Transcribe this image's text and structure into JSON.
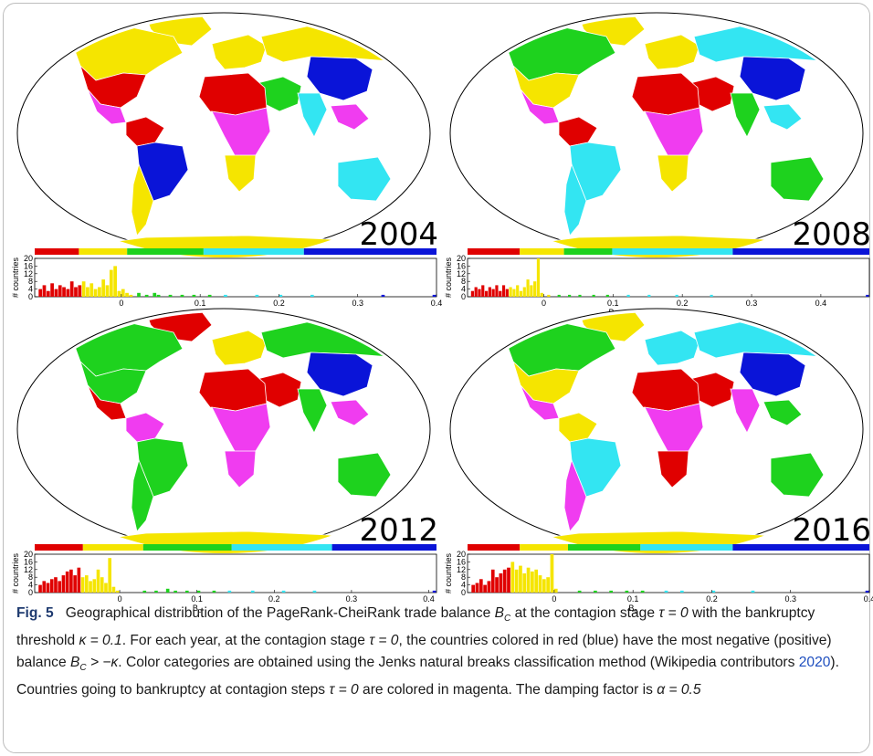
{
  "figure": {
    "label": "Fig. 5",
    "caption_text": "Geographical distribution of the PageRank-CheiRank trade balance B",
    "caption_parts": [
      "Geographical distribution of the PageRank-CheiRank trade balance ",
      "B",
      "C",
      " at the contagion stage ",
      "τ = 0",
      " with the bankruptcy threshold ",
      "κ = 0.1",
      ". For each year, at the contagion stage ",
      "τ = 0",
      ", the countries colored in red (blue) have the most negative (positive) balance ",
      "B",
      "C",
      " > −κ",
      ". Color categories are obtained using the Jenks natural breaks classification method (Wikipedia contributors ",
      "2020",
      "). Countries going to bankruptcy at contagion steps ",
      "τ = 0",
      " are colored in magenta. The damping factor is ",
      "α = 0.5"
    ]
  },
  "colors": {
    "red": "#e00000",
    "yellow": "#f5e500",
    "green": "#1ed21e",
    "cyan": "#33e5f2",
    "blue": "#0a14d8",
    "magenta": "#f03cf0",
    "gray": "#9a9a9a"
  },
  "panels": [
    {
      "year": "2004",
      "colorbar": [
        "red",
        "yellow",
        "green",
        "cyan",
        "blue"
      ],
      "colorbar_breaks": [
        0,
        0.11,
        0.23,
        0.42,
        0.67,
        1.0
      ],
      "continent_colors": {
        "north_america": "yellow",
        "usa": "red",
        "mexico": "magenta",
        "greenland": "yellow",
        "south_america_north": "red",
        "brazil": "blue",
        "south_america_south": "yellow",
        "europe": "yellow",
        "russia": "yellow",
        "china": "blue",
        "india": "cyan",
        "africa_north": "red",
        "africa_central": "magenta",
        "africa_south": "yellow",
        "middle_east": "green",
        "southeast_asia": "magenta",
        "australia": "cyan",
        "antarctica": "yellow"
      }
    },
    {
      "year": "2008",
      "colorbar": [
        "red",
        "yellow",
        "green",
        "cyan",
        "blue"
      ],
      "colorbar_breaks": [
        0,
        0.13,
        0.24,
        0.36,
        0.66,
        1.0
      ],
      "continent_colors": {
        "north_america": "green",
        "usa": "yellow",
        "mexico": "magenta",
        "greenland": "yellow",
        "south_america_north": "red",
        "brazil": "cyan",
        "south_america_south": "cyan",
        "europe": "yellow",
        "russia": "cyan",
        "china": "blue",
        "india": "green",
        "africa_north": "red",
        "africa_central": "magenta",
        "africa_south": "yellow",
        "middle_east": "red",
        "southeast_asia": "cyan",
        "australia": "green",
        "antarctica": "yellow"
      }
    },
    {
      "year": "2012",
      "colorbar": [
        "red",
        "yellow",
        "green",
        "cyan",
        "blue"
      ],
      "colorbar_breaks": [
        0,
        0.12,
        0.27,
        0.49,
        0.74,
        1.0
      ],
      "continent_colors": {
        "north_america": "green",
        "usa": "green",
        "mexico": "red",
        "greenland": "red",
        "south_america_north": "magenta",
        "brazil": "green",
        "south_america_south": "green",
        "europe": "yellow",
        "russia": "green",
        "china": "blue",
        "india": "green",
        "africa_north": "red",
        "africa_central": "magenta",
        "africa_south": "magenta",
        "middle_east": "red",
        "southeast_asia": "magenta",
        "australia": "green",
        "antarctica": "yellow"
      }
    },
    {
      "year": "2016",
      "colorbar": [
        "red",
        "yellow",
        "green",
        "cyan",
        "blue"
      ],
      "colorbar_breaks": [
        0,
        0.13,
        0.25,
        0.43,
        0.66,
        1.0
      ],
      "continent_colors": {
        "north_america": "green",
        "usa": "yellow",
        "mexico": "magenta",
        "greenland": "yellow",
        "south_america_north": "yellow",
        "brazil": "cyan",
        "south_america_south": "magenta",
        "europe": "cyan",
        "russia": "cyan",
        "china": "blue",
        "india": "magenta",
        "africa_north": "red",
        "africa_central": "magenta",
        "africa_south": "red",
        "middle_east": "red",
        "southeast_asia": "green",
        "australia": "green",
        "antarctica": "yellow"
      }
    }
  ],
  "chart_data": [
    {
      "type": "bar",
      "panel": "2004",
      "xlabel": "Bc",
      "ylabel": "# countries",
      "x_ticks": [
        "0",
        "0.1",
        "0.2",
        "0.3",
        "0.4"
      ],
      "x_tick_values": [
        0,
        0.1,
        0.2,
        0.3,
        0.4
      ],
      "y_ticks": [
        "0",
        "4",
        "8",
        "12",
        "16",
        "20"
      ],
      "y_tick_values": [
        0,
        4,
        8,
        12,
        16,
        20
      ],
      "xlim": [
        -0.11,
        0.4
      ],
      "ylim": [
        0,
        20
      ],
      "bin_width": 0.005,
      "bins": [
        {
          "x": -0.105,
          "y": 4,
          "c": "red"
        },
        {
          "x": -0.1,
          "y": 6,
          "c": "red"
        },
        {
          "x": -0.095,
          "y": 3,
          "c": "red"
        },
        {
          "x": -0.09,
          "y": 7,
          "c": "red"
        },
        {
          "x": -0.085,
          "y": 4,
          "c": "red"
        },
        {
          "x": -0.08,
          "y": 6,
          "c": "red"
        },
        {
          "x": -0.075,
          "y": 5,
          "c": "red"
        },
        {
          "x": -0.07,
          "y": 4,
          "c": "red"
        },
        {
          "x": -0.065,
          "y": 8,
          "c": "red"
        },
        {
          "x": -0.06,
          "y": 5,
          "c": "red"
        },
        {
          "x": -0.055,
          "y": 6,
          "c": "red"
        },
        {
          "x": -0.05,
          "y": 8,
          "c": "yellow"
        },
        {
          "x": -0.045,
          "y": 5,
          "c": "yellow"
        },
        {
          "x": -0.04,
          "y": 7,
          "c": "yellow"
        },
        {
          "x": -0.035,
          "y": 4,
          "c": "yellow"
        },
        {
          "x": -0.03,
          "y": 5,
          "c": "yellow"
        },
        {
          "x": -0.025,
          "y": 9,
          "c": "yellow"
        },
        {
          "x": -0.02,
          "y": 6,
          "c": "yellow"
        },
        {
          "x": -0.015,
          "y": 14,
          "c": "yellow"
        },
        {
          "x": -0.01,
          "y": 16,
          "c": "yellow"
        },
        {
          "x": -0.005,
          "y": 3,
          "c": "yellow"
        },
        {
          "x": 0.0,
          "y": 4,
          "c": "yellow"
        },
        {
          "x": 0.005,
          "y": 2,
          "c": "yellow"
        },
        {
          "x": 0.01,
          "y": 1,
          "c": "yellow"
        },
        {
          "x": 0.02,
          "y": 2,
          "c": "green"
        },
        {
          "x": 0.03,
          "y": 1,
          "c": "green"
        },
        {
          "x": 0.04,
          "y": 2,
          "c": "green"
        },
        {
          "x": 0.045,
          "y": 1,
          "c": "green"
        },
        {
          "x": 0.06,
          "y": 1,
          "c": "green"
        },
        {
          "x": 0.075,
          "y": 1,
          "c": "green"
        },
        {
          "x": 0.09,
          "y": 1,
          "c": "green"
        },
        {
          "x": 0.11,
          "y": 1,
          "c": "green"
        },
        {
          "x": 0.13,
          "y": 1,
          "c": "cyan"
        },
        {
          "x": 0.17,
          "y": 1,
          "c": "cyan"
        },
        {
          "x": 0.2,
          "y": 1,
          "c": "cyan"
        },
        {
          "x": 0.24,
          "y": 1,
          "c": "cyan"
        },
        {
          "x": 0.33,
          "y": 1,
          "c": "blue"
        },
        {
          "x": 0.395,
          "y": 1,
          "c": "blue"
        }
      ]
    },
    {
      "type": "bar",
      "panel": "2008",
      "xlabel": "Bc",
      "ylabel": "# countries",
      "x_ticks": [
        "0",
        "0.1",
        "0.2",
        "0.3",
        "0.4"
      ],
      "x_tick_values": [
        0,
        0.1,
        0.2,
        0.3,
        0.4
      ],
      "y_ticks": [
        "0",
        "4",
        "8",
        "12",
        "16",
        "20"
      ],
      "y_tick_values": [
        0,
        4,
        8,
        12,
        16,
        20
      ],
      "xlim": [
        -0.11,
        0.47
      ],
      "ylim": [
        0,
        20
      ],
      "bin_width": 0.005,
      "bins": [
        {
          "x": -0.105,
          "y": 3,
          "c": "red"
        },
        {
          "x": -0.1,
          "y": 5,
          "c": "red"
        },
        {
          "x": -0.095,
          "y": 4,
          "c": "red"
        },
        {
          "x": -0.09,
          "y": 6,
          "c": "red"
        },
        {
          "x": -0.085,
          "y": 3,
          "c": "red"
        },
        {
          "x": -0.08,
          "y": 5,
          "c": "red"
        },
        {
          "x": -0.075,
          "y": 4,
          "c": "red"
        },
        {
          "x": -0.07,
          "y": 6,
          "c": "red"
        },
        {
          "x": -0.065,
          "y": 3,
          "c": "red"
        },
        {
          "x": -0.06,
          "y": 6,
          "c": "red"
        },
        {
          "x": -0.055,
          "y": 4,
          "c": "red"
        },
        {
          "x": -0.05,
          "y": 5,
          "c": "yellow"
        },
        {
          "x": -0.045,
          "y": 4,
          "c": "yellow"
        },
        {
          "x": -0.04,
          "y": 6,
          "c": "yellow"
        },
        {
          "x": -0.035,
          "y": 3,
          "c": "yellow"
        },
        {
          "x": -0.03,
          "y": 5,
          "c": "yellow"
        },
        {
          "x": -0.025,
          "y": 9,
          "c": "yellow"
        },
        {
          "x": -0.02,
          "y": 6,
          "c": "yellow"
        },
        {
          "x": -0.015,
          "y": 8,
          "c": "yellow"
        },
        {
          "x": -0.01,
          "y": 20,
          "c": "yellow"
        },
        {
          "x": -0.005,
          "y": 2,
          "c": "yellow"
        },
        {
          "x": 0.005,
          "y": 1,
          "c": "yellow"
        },
        {
          "x": 0.02,
          "y": 1,
          "c": "green"
        },
        {
          "x": 0.035,
          "y": 1,
          "c": "green"
        },
        {
          "x": 0.05,
          "y": 1,
          "c": "green"
        },
        {
          "x": 0.07,
          "y": 1,
          "c": "green"
        },
        {
          "x": 0.09,
          "y": 1,
          "c": "green"
        },
        {
          "x": 0.12,
          "y": 1,
          "c": "cyan"
        },
        {
          "x": 0.15,
          "y": 1,
          "c": "cyan"
        },
        {
          "x": 0.19,
          "y": 1,
          "c": "cyan"
        },
        {
          "x": 0.24,
          "y": 1,
          "c": "cyan"
        },
        {
          "x": 0.465,
          "y": 1,
          "c": "blue"
        }
      ]
    },
    {
      "type": "bar",
      "panel": "2012",
      "xlabel": "Bc",
      "ylabel": "# countries",
      "x_ticks": [
        "0",
        "0.1",
        "0.2",
        "0.3",
        "0.4"
      ],
      "x_tick_values": [
        0,
        0.1,
        0.2,
        0.3,
        0.4
      ],
      "y_ticks": [
        "0",
        "4",
        "8",
        "12",
        "16",
        "20"
      ],
      "y_tick_values": [
        0,
        4,
        8,
        12,
        16,
        20
      ],
      "xlim": [
        -0.11,
        0.41
      ],
      "ylim": [
        0,
        20
      ],
      "bin_width": 0.005,
      "bins": [
        {
          "x": -0.105,
          "y": 4,
          "c": "red"
        },
        {
          "x": -0.1,
          "y": 6,
          "c": "red"
        },
        {
          "x": -0.095,
          "y": 5,
          "c": "red"
        },
        {
          "x": -0.09,
          "y": 7,
          "c": "red"
        },
        {
          "x": -0.085,
          "y": 8,
          "c": "red"
        },
        {
          "x": -0.08,
          "y": 6,
          "c": "red"
        },
        {
          "x": -0.075,
          "y": 9,
          "c": "red"
        },
        {
          "x": -0.07,
          "y": 11,
          "c": "red"
        },
        {
          "x": -0.065,
          "y": 12,
          "c": "red"
        },
        {
          "x": -0.06,
          "y": 9,
          "c": "red"
        },
        {
          "x": -0.055,
          "y": 13,
          "c": "red"
        },
        {
          "x": -0.05,
          "y": 8,
          "c": "yellow"
        },
        {
          "x": -0.045,
          "y": 9,
          "c": "yellow"
        },
        {
          "x": -0.04,
          "y": 6,
          "c": "yellow"
        },
        {
          "x": -0.035,
          "y": 7,
          "c": "yellow"
        },
        {
          "x": -0.03,
          "y": 12,
          "c": "yellow"
        },
        {
          "x": -0.025,
          "y": 8,
          "c": "yellow"
        },
        {
          "x": -0.02,
          "y": 5,
          "c": "yellow"
        },
        {
          "x": -0.015,
          "y": 18,
          "c": "yellow"
        },
        {
          "x": -0.01,
          "y": 3,
          "c": "yellow"
        },
        {
          "x": -0.005,
          "y": 1,
          "c": "yellow"
        },
        {
          "x": 0.03,
          "y": 1,
          "c": "green"
        },
        {
          "x": 0.045,
          "y": 1,
          "c": "green"
        },
        {
          "x": 0.06,
          "y": 2,
          "c": "green"
        },
        {
          "x": 0.07,
          "y": 1,
          "c": "green"
        },
        {
          "x": 0.085,
          "y": 1,
          "c": "green"
        },
        {
          "x": 0.1,
          "y": 1,
          "c": "green"
        },
        {
          "x": 0.12,
          "y": 1,
          "c": "green"
        },
        {
          "x": 0.14,
          "y": 1,
          "c": "cyan"
        },
        {
          "x": 0.17,
          "y": 1,
          "c": "cyan"
        },
        {
          "x": 0.21,
          "y": 1,
          "c": "cyan"
        },
        {
          "x": 0.25,
          "y": 1,
          "c": "cyan"
        },
        {
          "x": 0.405,
          "y": 1,
          "c": "blue"
        }
      ]
    },
    {
      "type": "bar",
      "panel": "2016",
      "xlabel": "Bc",
      "ylabel": "# countries",
      "x_ticks": [
        "0",
        "0.1",
        "0.2",
        "0.3",
        "0.4"
      ],
      "x_tick_values": [
        0,
        0.1,
        0.2,
        0.3,
        0.4
      ],
      "y_ticks": [
        "0",
        "4",
        "8",
        "12",
        "16",
        "20"
      ],
      "y_tick_values": [
        0,
        4,
        8,
        12,
        16,
        20
      ],
      "xlim": [
        -0.11,
        0.4
      ],
      "ylim": [
        0,
        20
      ],
      "bin_width": 0.005,
      "bins": [
        {
          "x": -0.105,
          "y": 4,
          "c": "red"
        },
        {
          "x": -0.1,
          "y": 5,
          "c": "red"
        },
        {
          "x": -0.095,
          "y": 7,
          "c": "red"
        },
        {
          "x": -0.09,
          "y": 4,
          "c": "red"
        },
        {
          "x": -0.085,
          "y": 6,
          "c": "red"
        },
        {
          "x": -0.08,
          "y": 12,
          "c": "red"
        },
        {
          "x": -0.075,
          "y": 8,
          "c": "red"
        },
        {
          "x": -0.07,
          "y": 10,
          "c": "red"
        },
        {
          "x": -0.065,
          "y": 12,
          "c": "red"
        },
        {
          "x": -0.06,
          "y": 13,
          "c": "red"
        },
        {
          "x": -0.055,
          "y": 16,
          "c": "yellow"
        },
        {
          "x": -0.05,
          "y": 12,
          "c": "yellow"
        },
        {
          "x": -0.045,
          "y": 14,
          "c": "yellow"
        },
        {
          "x": -0.04,
          "y": 10,
          "c": "yellow"
        },
        {
          "x": -0.035,
          "y": 13,
          "c": "yellow"
        },
        {
          "x": -0.03,
          "y": 11,
          "c": "yellow"
        },
        {
          "x": -0.025,
          "y": 12,
          "c": "yellow"
        },
        {
          "x": -0.02,
          "y": 9,
          "c": "yellow"
        },
        {
          "x": -0.015,
          "y": 7,
          "c": "yellow"
        },
        {
          "x": -0.01,
          "y": 8,
          "c": "yellow"
        },
        {
          "x": -0.005,
          "y": 20,
          "c": "yellow"
        },
        {
          "x": 0.0,
          "y": 2,
          "c": "yellow"
        },
        {
          "x": 0.03,
          "y": 1,
          "c": "green"
        },
        {
          "x": 0.05,
          "y": 1,
          "c": "green"
        },
        {
          "x": 0.07,
          "y": 1,
          "c": "green"
        },
        {
          "x": 0.09,
          "y": 1,
          "c": "green"
        },
        {
          "x": 0.11,
          "y": 1,
          "c": "green"
        },
        {
          "x": 0.14,
          "y": 1,
          "c": "cyan"
        },
        {
          "x": 0.16,
          "y": 1,
          "c": "cyan"
        },
        {
          "x": 0.2,
          "y": 1,
          "c": "cyan"
        },
        {
          "x": 0.25,
          "y": 1,
          "c": "cyan"
        },
        {
          "x": 0.395,
          "y": 1,
          "c": "blue"
        }
      ]
    }
  ]
}
